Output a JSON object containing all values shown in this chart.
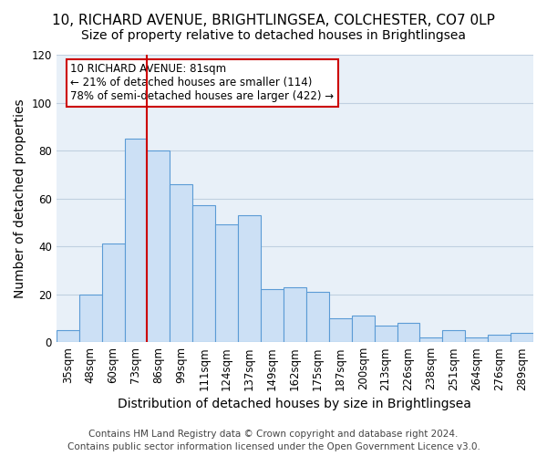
{
  "title_line1": "10, RICHARD AVENUE, BRIGHTLINGSEA, COLCHESTER, CO7 0LP",
  "title_line2": "Size of property relative to detached houses in Brightlingsea",
  "xlabel": "Distribution of detached houses by size in Brightlingsea",
  "ylabel": "Number of detached properties",
  "categories": [
    "35sqm",
    "48sqm",
    "60sqm",
    "73sqm",
    "86sqm",
    "99sqm",
    "111sqm",
    "124sqm",
    "137sqm",
    "149sqm",
    "162sqm",
    "175sqm",
    "187sqm",
    "200sqm",
    "213sqm",
    "226sqm",
    "238sqm",
    "251sqm",
    "264sqm",
    "276sqm",
    "289sqm"
  ],
  "values": [
    5,
    20,
    41,
    85,
    80,
    66,
    57,
    49,
    53,
    22,
    23,
    21,
    10,
    11,
    7,
    8,
    2,
    5,
    2,
    3,
    4
  ],
  "bar_color": "#cce0f5",
  "bar_edge_color": "#5b9bd5",
  "ref_line_color": "#cc0000",
  "annotation_title": "10 RICHARD AVENUE: 81sqm",
  "annotation_line1": "← 21% of detached houses are smaller (114)",
  "annotation_line2": "78% of semi-detached houses are larger (422) →",
  "annotation_box_color": "#ffffff",
  "annotation_box_edge_color": "#cc0000",
  "ylim": [
    0,
    120
  ],
  "yticks": [
    0,
    20,
    40,
    60,
    80,
    100,
    120
  ],
  "footer_line1": "Contains HM Land Registry data © Crown copyright and database right 2024.",
  "footer_line2": "Contains public sector information licensed under the Open Government Licence v3.0.",
  "bg_color": "#ffffff",
  "plot_bg_color": "#e8f0f8",
  "grid_color": "#c0d0e0",
  "title_fontsize": 11,
  "subtitle_fontsize": 10,
  "axis_label_fontsize": 10,
  "tick_fontsize": 8.5,
  "footer_fontsize": 7.5
}
